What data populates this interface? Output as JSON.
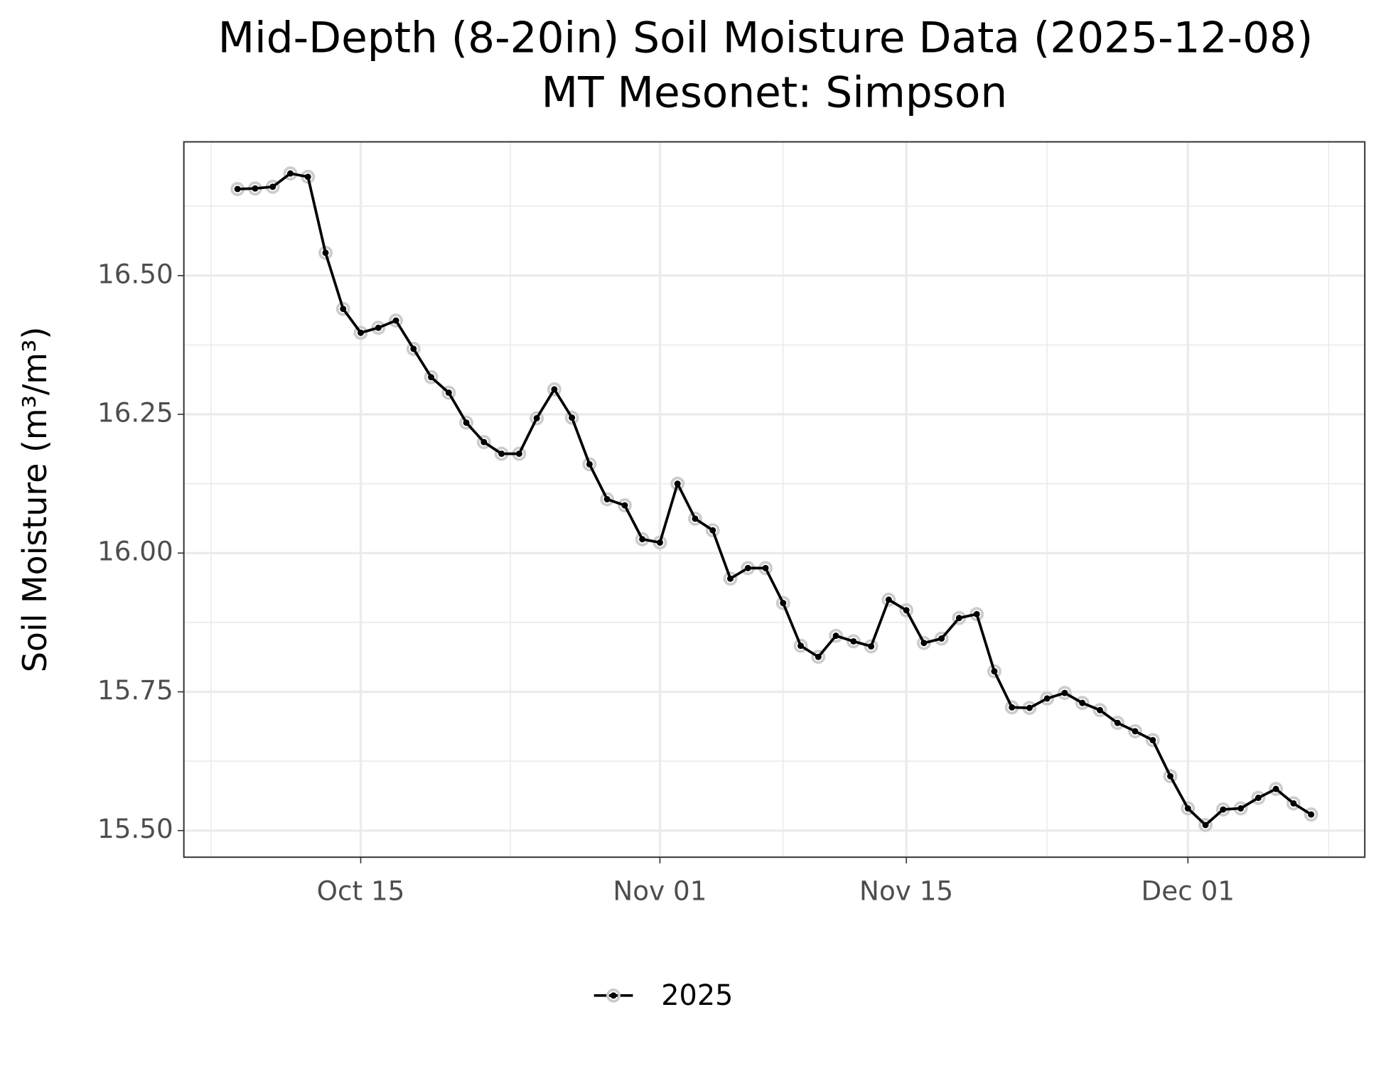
{
  "chart_data": {
    "type": "line",
    "title": "Mid-Depth (8-20in) Soil Moisture Data (2025-12-08)",
    "subtitle": "MT Mesonet: Simpson",
    "y_label": "Soil Moisture (m³/m³)",
    "x": [
      "Oct 08",
      "Oct 09",
      "Oct 10",
      "Oct 11",
      "Oct 12",
      "Oct 13",
      "Oct 14",
      "Oct 15",
      "Oct 16",
      "Oct 17",
      "Oct 18",
      "Oct 19",
      "Oct 20",
      "Oct 21",
      "Oct 22",
      "Oct 23",
      "Oct 24",
      "Oct 25",
      "Oct 26",
      "Oct 27",
      "Oct 28",
      "Oct 29",
      "Oct 30",
      "Oct 31",
      "Nov 01",
      "Nov 02",
      "Nov 03",
      "Nov 04",
      "Nov 05",
      "Nov 06",
      "Nov 07",
      "Nov 08",
      "Nov 09",
      "Nov 10",
      "Nov 11",
      "Nov 12",
      "Nov 13",
      "Nov 14",
      "Nov 15",
      "Nov 16",
      "Nov 17",
      "Nov 18",
      "Nov 19",
      "Nov 20",
      "Nov 21",
      "Nov 22",
      "Nov 23",
      "Nov 24",
      "Nov 25",
      "Nov 26",
      "Nov 27",
      "Nov 28",
      "Nov 29",
      "Nov 30",
      "Dec 01",
      "Dec 02",
      "Dec 03",
      "Dec 04",
      "Dec 05",
      "Dec 06",
      "Dec 07",
      "Dec 08"
    ],
    "series": [
      {
        "name": "2025",
        "color": "#000000",
        "point_outline": "#cccccc",
        "values": [
          16.656,
          16.657,
          16.66,
          16.684,
          16.678,
          16.541,
          16.44,
          16.397,
          16.406,
          16.419,
          16.368,
          16.317,
          16.289,
          16.235,
          16.2,
          16.179,
          16.179,
          16.243,
          16.295,
          16.244,
          16.16,
          16.097,
          16.086,
          16.025,
          16.019,
          16.125,
          16.062,
          16.041,
          15.954,
          15.973,
          15.973,
          15.91,
          15.833,
          15.813,
          15.851,
          15.841,
          15.832,
          15.916,
          15.897,
          15.838,
          15.846,
          15.883,
          15.89,
          15.787,
          15.722,
          15.721,
          15.738,
          15.748,
          15.73,
          15.717,
          15.694,
          15.679,
          15.663,
          15.598,
          15.54,
          15.51,
          15.538,
          15.54,
          15.559,
          15.575,
          15.549,
          15.529
        ]
      }
    ],
    "xticks": [
      "Oct 15",
      "Nov 01",
      "Nov 15",
      "Dec 01"
    ],
    "ylim": [
      15.452,
      16.741
    ],
    "yticks": [
      {
        "value": 15.5,
        "label": "15.50"
      },
      15.75,
      {
        "value": 16,
        "label": "16.00"
      },
      16.25,
      {
        "value": 16.5,
        "label": "16.50"
      }
    ],
    "grid": true,
    "legend_position": "bottom"
  }
}
